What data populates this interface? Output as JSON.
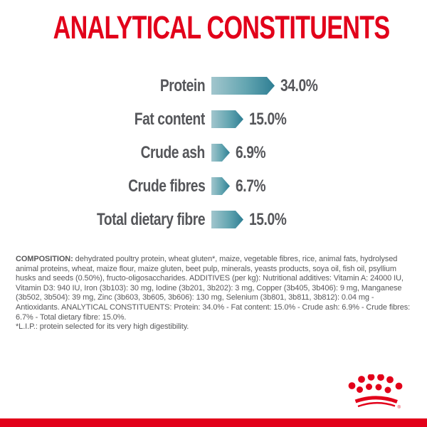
{
  "page": {
    "title": "ANALYTICAL CONSTITUENTS"
  },
  "chart_data": {
    "type": "bar",
    "orientation": "horizontal",
    "title": "ANALYTICAL CONSTITUENTS",
    "categories": [
      "Protein",
      "Fat content",
      "Crude ash",
      "Crude fibres",
      "Total dietary fibre"
    ],
    "values": [
      34.0,
      15.0,
      6.9,
      6.7,
      15.0
    ],
    "value_labels": [
      "34.0%",
      "15.0%",
      "6.9%",
      "6.7%",
      "15.0%"
    ],
    "unit": "%",
    "xlim": [
      0,
      40
    ],
    "grid": false,
    "legend": "none",
    "bar_style": {
      "shape": "right-arrow",
      "gradient_start": "#a2c6cd",
      "gradient_end": "#2e7e93"
    }
  },
  "composition": {
    "lead": "COMPOSITION:",
    "body": "dehydrated poultry protein, wheat gluten*, maize, vegetable fibres, rice, animal fats, hydrolysed animal proteins, wheat, maize flour, maize gluten, beet pulp, minerals, yeasts products, soya oil, fish oil, psyllium husks and seeds (0.50%), fructo-oligosaccharides. ADDITIVES (per kg): Nutritional additives: Vitamin A: 24000 IU, Vitamin D3: 940 IU, Iron (3b103): 30 mg, Iodine (3b201, 3b202): 3 mg, Copper (3b405, 3b406): 9 mg, Manganese (3b502, 3b504): 39 mg, Zinc (3b603, 3b605, 3b606): 130 mg, Selenium (3b801, 3b811, 3b812): 0.04 mg - Antioxidants. ANALYTICAL CONSTITUENTS: Protein: 34.0% - Fat content: 15.0% - Crude ash: 6.9% - Crude fibres: 6.7% - Total dietary fibre: 15.0%.",
    "footnote": "*L.I.P.: protein selected for its very high digestibility."
  },
  "brand": {
    "logo": "royal-canin-crown",
    "registered_mark": "®"
  },
  "colors": {
    "brand_red": "#e2001a",
    "label_gray": "#55565a",
    "body_text_gray": "#58585a",
    "bar_gradient_start": "#a2c6cd",
    "bar_gradient_end": "#2e7e93"
  }
}
